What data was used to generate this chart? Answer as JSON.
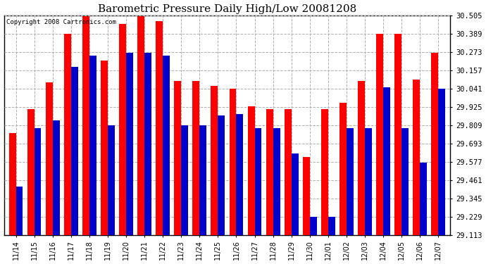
{
  "title": "Barometric Pressure Daily High/Low 20081208",
  "copyright": "Copyright 2008 Cartronics.com",
  "categories": [
    "11/14",
    "11/15",
    "11/16",
    "11/17",
    "11/18",
    "11/19",
    "11/20",
    "11/21",
    "11/22",
    "11/23",
    "11/24",
    "11/25",
    "11/26",
    "11/27",
    "11/28",
    "11/29",
    "11/30",
    "12/01",
    "12/02",
    "12/03",
    "12/04",
    "12/05",
    "12/06",
    "12/07"
  ],
  "high_values": [
    29.76,
    29.91,
    30.08,
    30.39,
    30.5,
    30.22,
    30.45,
    30.5,
    30.47,
    30.09,
    30.09,
    30.06,
    30.04,
    29.93,
    29.91,
    29.91,
    29.61,
    29.91,
    29.95,
    30.09,
    30.39,
    30.39,
    30.1,
    30.27
  ],
  "low_values": [
    29.42,
    29.79,
    29.84,
    30.18,
    30.25,
    29.81,
    30.27,
    30.27,
    30.25,
    29.81,
    29.81,
    29.87,
    29.88,
    29.79,
    29.79,
    29.63,
    29.23,
    29.23,
    29.79,
    29.79,
    30.05,
    29.79,
    29.57,
    30.04
  ],
  "bar_color_high": "#ff0000",
  "bar_color_low": "#0000cc",
  "background_color": "#ffffff",
  "grid_color": "#b0b0b0",
  "yticks": [
    29.113,
    29.229,
    29.345,
    29.461,
    29.577,
    29.693,
    29.809,
    29.925,
    30.041,
    30.157,
    30.273,
    30.389,
    30.505
  ],
  "ymin": 29.113,
  "ymax": 30.505
}
